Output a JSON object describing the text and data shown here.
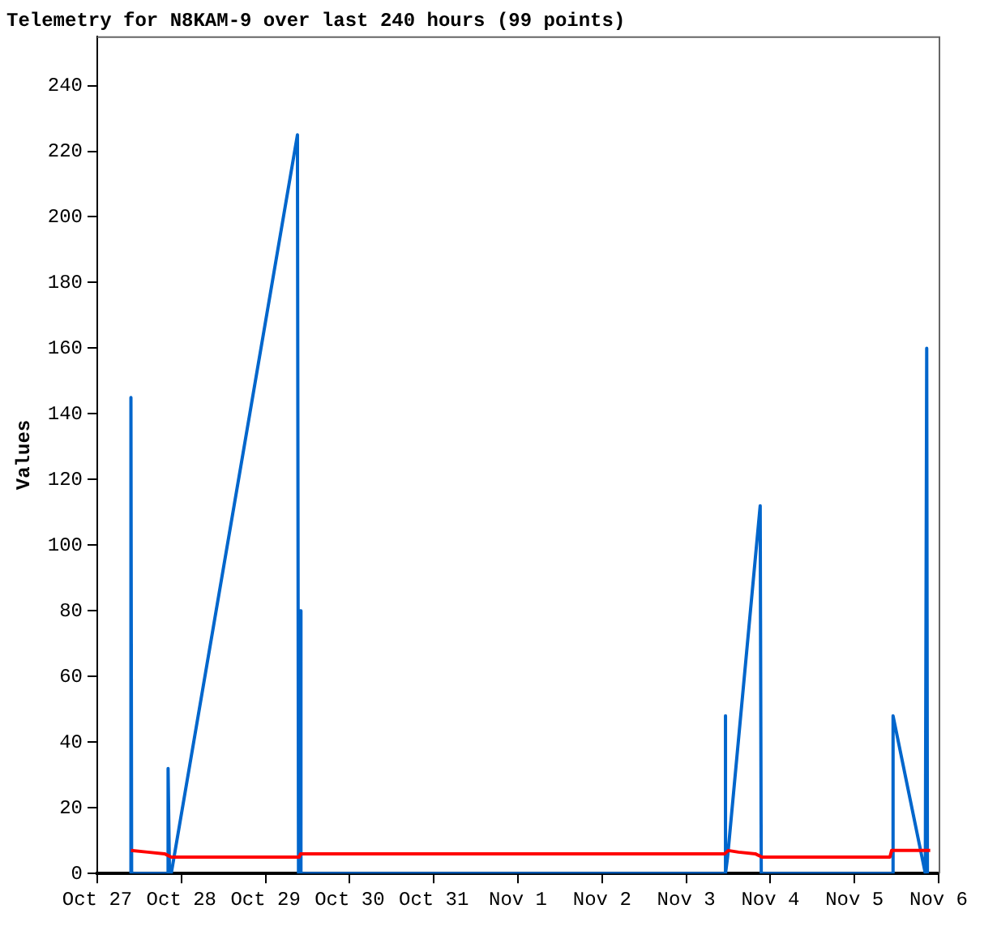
{
  "chart_data": {
    "type": "line",
    "title": "Telemetry for N8KAM-9 over last 240 hours (99 points)",
    "ylabel": "Values",
    "x": [
      "--10-27T09:36",
      "--10-27T09:36",
      "--10-27T09:48",
      "--10-27T20:12",
      "--10-27T20:12",
      "--10-27T20:36",
      "--10-27T21:06",
      "--10-29T09:06",
      "--10-29T09:24",
      "--10-29T09:54",
      "--10-29T10:06",
      "--11-03T11:00",
      "--11-03T11:00",
      "--11-03T11:24",
      "--11-03T11:48",
      "--11-03T21:06",
      "--11-03T21:24",
      "--11-05T11:00",
      "--11-05T11:00",
      "--11-05T20:12",
      "--11-05T20:36",
      "--11-05T20:48"
    ],
    "series": [
      {
        "color": "#0066cc",
        "values": [
          0,
          145,
          0,
          0,
          32,
          0,
          0,
          225,
          0,
          80,
          0,
          0,
          48,
          0,
          5,
          112,
          0,
          0,
          48,
          0,
          160,
          0
        ]
      },
      {
        "color": "#ff0000",
        "x": [
          "--10-27T09:36",
          "--10-27T14:24",
          "--10-27T19:12",
          "--10-27T21:06",
          "--10-29T09:36",
          "--10-29T10:00",
          "--11-03T11:00",
          "--11-03T12:00",
          "--11-03T14:54",
          "--11-03T19:42",
          "--11-03T21:36",
          "--11-05T10:06",
          "--11-05T10:36",
          "--11-05T21:36"
        ],
        "values": [
          7,
          6.5,
          6,
          5,
          5,
          6,
          6,
          7,
          6.5,
          6,
          5,
          5,
          7,
          7
        ]
      }
    ],
    "xlim": [
      "--10-27",
      "--11-06"
    ],
    "xticks": [
      {
        "value": "--10-27",
        "label": "Oct 27"
      },
      {
        "value": "--10-28",
        "label": "Oct 28"
      },
      {
        "value": "--10-29",
        "label": "Oct 29"
      },
      {
        "value": "--10-30",
        "label": "Oct 30"
      },
      {
        "value": "--10-31",
        "label": "Oct 31"
      },
      {
        "value": "--11-01",
        "label": "Nov 1"
      },
      {
        "value": "--11-02",
        "label": "Nov 2"
      },
      {
        "value": "--11-03",
        "label": "Nov 3"
      },
      {
        "value": "--11-04",
        "label": "Nov 4"
      },
      {
        "value": "--11-05",
        "label": "Nov 5"
      },
      {
        "value": "--11-06",
        "label": "Nov 6"
      }
    ],
    "ylim": [
      0,
      255
    ],
    "yticks": [
      0,
      20,
      40,
      60,
      80,
      100,
      120,
      140,
      160,
      180,
      200,
      220,
      240
    ],
    "grid": false,
    "legend": false,
    "marker": "none",
    "line_style": "solid"
  }
}
